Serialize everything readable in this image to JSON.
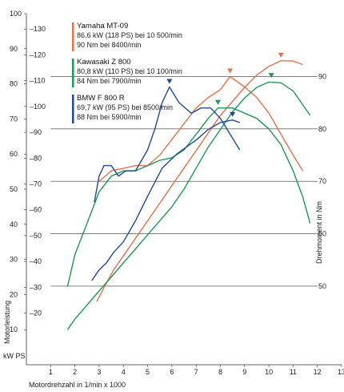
{
  "chart_data": {
    "type": "line",
    "xlabel": "Motordrehzahl in 1/min x 1000",
    "ylabel_left": "Motorleistung",
    "ylabel_left_units": "kW PS",
    "ylabel_right": "Drehmoment in Nm",
    "x_ticks": [
      1,
      2,
      3,
      4,
      5,
      6,
      7,
      8,
      9,
      10,
      11,
      12,
      13
    ],
    "y_kw_ticks": [
      10,
      20,
      30,
      40,
      50,
      60,
      70,
      80,
      90,
      100
    ],
    "y_ps_ticks": [
      20,
      30,
      40,
      50,
      60,
      70,
      80,
      90,
      100,
      110,
      120,
      130
    ],
    "y_nm_ticks": [
      50,
      60,
      70,
      80,
      90
    ],
    "xlim": [
      0,
      13
    ],
    "ylim_kw": [
      0,
      100
    ],
    "ylim_nm": [
      35,
      102
    ],
    "series": [
      {
        "name": "Yamaha MT-09",
        "specs": [
          "86,6 kW (118 PS) bei 10 500/min",
          "90 Nm bei 8400/min"
        ],
        "color": "#e8704a",
        "power_kw": [
          [
            2.9,
            18
          ],
          [
            3.2,
            22
          ],
          [
            3.6,
            27
          ],
          [
            4,
            31
          ],
          [
            4.5,
            36
          ],
          [
            5,
            41
          ],
          [
            5.5,
            46
          ],
          [
            6,
            51
          ],
          [
            6.5,
            56
          ],
          [
            7,
            61
          ],
          [
            7.5,
            66
          ],
          [
            8,
            71
          ],
          [
            8.5,
            75
          ],
          [
            9,
            79
          ],
          [
            9.5,
            82.5
          ],
          [
            10,
            85
          ],
          [
            10.5,
            86.6
          ],
          [
            11,
            86.5
          ],
          [
            11.4,
            85.5
          ]
        ],
        "torque_nm": [
          [
            3,
            70
          ],
          [
            3.5,
            72
          ],
          [
            4,
            72.5
          ],
          [
            4.5,
            73
          ],
          [
            5,
            73
          ],
          [
            5.5,
            75
          ],
          [
            6,
            78
          ],
          [
            6.5,
            81
          ],
          [
            7,
            84
          ],
          [
            7.5,
            86
          ],
          [
            8,
            87.5
          ],
          [
            8.4,
            90
          ],
          [
            9,
            88
          ],
          [
            9.5,
            86
          ],
          [
            10,
            83
          ],
          [
            10.5,
            79
          ],
          [
            11,
            75
          ],
          [
            11.4,
            72
          ]
        ],
        "peak_power_marker": [
          10.5,
          86.6
        ],
        "peak_torque_marker": [
          8.4,
          90
        ]
      },
      {
        "name": "Kawasaki Z 800",
        "specs": [
          "80,8 kW (110 PS) bei 10 100/min",
          "84 Nm bei 7900/min"
        ],
        "color": "#1a9a55",
        "power_kw": [
          [
            1.7,
            10
          ],
          [
            2,
            13
          ],
          [
            2.5,
            17
          ],
          [
            3,
            21
          ],
          [
            3.5,
            25
          ],
          [
            4,
            29
          ],
          [
            4.5,
            33
          ],
          [
            5,
            37
          ],
          [
            5.5,
            41
          ],
          [
            6,
            45
          ],
          [
            6.5,
            50
          ],
          [
            7,
            56
          ],
          [
            7.5,
            62
          ],
          [
            8,
            67
          ],
          [
            8.5,
            72
          ],
          [
            9,
            76
          ],
          [
            9.5,
            79
          ],
          [
            10,
            80.5
          ],
          [
            10.5,
            80.3
          ],
          [
            11,
            78
          ],
          [
            11.4,
            74
          ],
          [
            11.7,
            71
          ]
        ],
        "torque_nm": [
          [
            1.7,
            50
          ],
          [
            2,
            56
          ],
          [
            2.5,
            62
          ],
          [
            3,
            68
          ],
          [
            3.5,
            71
          ],
          [
            4,
            72
          ],
          [
            4.5,
            72
          ],
          [
            5,
            73
          ],
          [
            5.5,
            74
          ],
          [
            6,
            74.5
          ],
          [
            6.5,
            76
          ],
          [
            7,
            79
          ],
          [
            7.5,
            82
          ],
          [
            7.9,
            84
          ],
          [
            8.5,
            84
          ],
          [
            9,
            83
          ],
          [
            9.5,
            82
          ],
          [
            10,
            80
          ],
          [
            10.5,
            77
          ],
          [
            11,
            72
          ],
          [
            11.4,
            67
          ],
          [
            11.7,
            62
          ]
        ],
        "peak_power_marker": [
          10.1,
          80.8
        ],
        "peak_torque_marker": [
          7.9,
          84
        ]
      },
      {
        "name": "BMW F 800 R",
        "specs": [
          "69,7 kW (95 PS) bei 8500/min",
          "88 Nm bei 5900/min"
        ],
        "color": "#1e4a9a",
        "power_kw": [
          [
            2.7,
            24
          ],
          [
            3,
            27
          ],
          [
            3.3,
            29
          ],
          [
            3.6,
            32
          ],
          [
            4,
            35
          ],
          [
            4.5,
            41
          ],
          [
            5,
            48
          ],
          [
            5.3,
            52
          ],
          [
            5.6,
            56
          ],
          [
            5.9,
            58
          ],
          [
            6.2,
            60
          ],
          [
            6.6,
            62
          ],
          [
            7,
            64
          ],
          [
            7.5,
            67
          ],
          [
            8,
            69
          ],
          [
            8.5,
            69.7
          ],
          [
            8.8,
            69
          ]
        ],
        "torque_nm": [
          [
            2.8,
            66
          ],
          [
            3,
            71
          ],
          [
            3.2,
            73
          ],
          [
            3.5,
            73
          ],
          [
            3.8,
            71
          ],
          [
            4.1,
            72
          ],
          [
            4.5,
            72
          ],
          [
            5,
            76
          ],
          [
            5.3,
            80
          ],
          [
            5.6,
            85
          ],
          [
            5.9,
            88
          ],
          [
            6.3,
            85
          ],
          [
            6.8,
            83
          ],
          [
            7.2,
            84
          ],
          [
            7.6,
            84
          ],
          [
            8,
            82
          ],
          [
            8.4,
            79
          ],
          [
            8.8,
            76
          ]
        ],
        "peak_power_marker": [
          8.5,
          69.7
        ],
        "peak_torque_marker": [
          5.9,
          88
        ]
      }
    ]
  }
}
